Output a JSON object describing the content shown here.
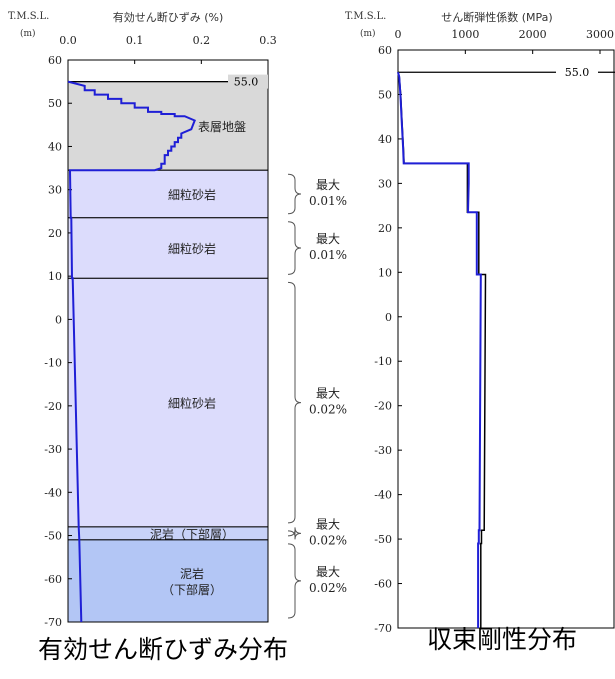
{
  "chart_data": [
    {
      "type": "line",
      "y_axis_label": "T.M.S.L.",
      "y_axis_unit": "(m)",
      "x_axis_label": "有効せん断ひずみ (%)",
      "x_ticks": [
        "0.0",
        "0.1",
        "0.2",
        "0.3"
      ],
      "xlim": [
        0.0,
        0.3
      ],
      "ylim": [
        -70,
        60
      ],
      "y_ticks": [
        60,
        50,
        40,
        30,
        20,
        10,
        0,
        -10,
        -20,
        -30,
        -40,
        -50,
        -60,
        -70
      ],
      "surface_marker": "55.0",
      "caption": "有効せん断ひずみ分布",
      "layers": [
        {
          "name": "表層地盤",
          "top": 55.0,
          "bottom": 34.5,
          "color": "#d9d9d9"
        },
        {
          "name": "細粒砂岩",
          "top": 34.5,
          "bottom": 23.5,
          "color": "#dcdcfc"
        },
        {
          "name": "細粒砂岩",
          "top": 23.5,
          "bottom": 9.5,
          "color": "#dcdcfc"
        },
        {
          "name": "細粒砂岩",
          "top": 9.5,
          "bottom": -48.0,
          "color": "#dcdcfc"
        },
        {
          "name": "泥岩（下部層）",
          "top": -48.0,
          "bottom": -51.0,
          "color": "#c8d2f8"
        },
        {
          "name": "泥岩\n（下部層）",
          "top": -51.0,
          "bottom": -70.0,
          "color": "#b3c6f5"
        }
      ],
      "max_annotations": [
        {
          "label": "最大",
          "value": "0.01%",
          "top": 34.5,
          "bottom": 23.5
        },
        {
          "label": "最大",
          "value": "0.01%",
          "top": 23.5,
          "bottom": 9.5
        },
        {
          "label": "最大",
          "value": "0.02%",
          "top": 9.5,
          "bottom": -48.0
        },
        {
          "label": "最大",
          "value": "0.02%",
          "top": -48.0,
          "bottom": -51.0
        },
        {
          "label": "最大",
          "value": "0.02%",
          "top": -51.0,
          "bottom": -70.0
        }
      ],
      "series": [
        {
          "color": "#1f1fd6",
          "points": [
            [
              0.0,
              55.0
            ],
            [
              0.025,
              54.0
            ],
            [
              0.025,
              53.0
            ],
            [
              0.04,
              53.0
            ],
            [
              0.04,
              52.0
            ],
            [
              0.06,
              52.0
            ],
            [
              0.06,
              51.0
            ],
            [
              0.08,
              51.0
            ],
            [
              0.08,
              50.0
            ],
            [
              0.1,
              50.0
            ],
            [
              0.1,
              49.0
            ],
            [
              0.12,
              49.0
            ],
            [
              0.12,
              48.0
            ],
            [
              0.14,
              48.0
            ],
            [
              0.14,
              47.5
            ],
            [
              0.16,
              47.5
            ],
            [
              0.16,
              47.0
            ],
            [
              0.175,
              47.0
            ],
            [
              0.19,
              46.0
            ],
            [
              0.185,
              44.0
            ],
            [
              0.17,
              43.0
            ],
            [
              0.17,
              42.0
            ],
            [
              0.165,
              42.0
            ],
            [
              0.165,
              41.0
            ],
            [
              0.16,
              41.0
            ],
            [
              0.16,
              40.0
            ],
            [
              0.155,
              40.0
            ],
            [
              0.155,
              39.0
            ],
            [
              0.15,
              39.0
            ],
            [
              0.15,
              38.0
            ],
            [
              0.145,
              38.0
            ],
            [
              0.145,
              36.0
            ],
            [
              0.14,
              36.0
            ],
            [
              0.14,
              35.0
            ],
            [
              0.13,
              34.5
            ],
            [
              0.003,
              34.5
            ],
            [
              0.004,
              23.5
            ],
            [
              0.005,
              23.5
            ],
            [
              0.006,
              9.5
            ],
            [
              0.007,
              9.5
            ],
            [
              0.016,
              -48.0
            ],
            [
              0.017,
              -51.0
            ],
            [
              0.02,
              -70.0
            ]
          ]
        }
      ]
    },
    {
      "type": "line",
      "y_axis_label": "T.M.S.L.",
      "y_axis_unit": "(m)",
      "x_axis_label": "せん断弾性係数 (MPa)",
      "x_ticks": [
        "0",
        "1000",
        "2000",
        "3000"
      ],
      "xlim": [
        0,
        3000
      ],
      "ylim": [
        -70,
        60
      ],
      "y_ticks": [
        60,
        50,
        40,
        30,
        20,
        10,
        0,
        -10,
        -20,
        -30,
        -40,
        -50,
        -60,
        -70
      ],
      "surface_marker": "55.0",
      "caption": "収束剛性分布",
      "series": [
        {
          "name": "black",
          "color": "#000000",
          "points": [
            [
              0,
              55.0
            ],
            [
              20,
              54.0
            ],
            [
              40,
              50.0
            ],
            [
              60,
              44.0
            ],
            [
              80,
              38.0
            ],
            [
              90,
              34.5
            ],
            [
              1030,
              34.5
            ],
            [
              1030,
              23.5
            ],
            [
              1200,
              23.5
            ],
            [
              1200,
              9.5
            ],
            [
              1300,
              9.5
            ],
            [
              1280,
              -48.0
            ],
            [
              1240,
              -48.0
            ],
            [
              1240,
              -51.0
            ],
            [
              1230,
              -51.0
            ],
            [
              1230,
              -70.0
            ]
          ]
        },
        {
          "name": "blue",
          "color": "#1f1fd6",
          "points": [
            [
              0,
              55.0
            ],
            [
              18,
              54.0
            ],
            [
              35,
              50.0
            ],
            [
              55,
              44.0
            ],
            [
              75,
              38.0
            ],
            [
              85,
              34.5
            ],
            [
              1050,
              34.5
            ],
            [
              1050,
              30.0
            ],
            [
              1040,
              23.5
            ],
            [
              1170,
              23.5
            ],
            [
              1170,
              9.5
            ],
            [
              1230,
              9.5
            ],
            [
              1210,
              -48.0
            ],
            [
              1200,
              -48.0
            ],
            [
              1200,
              -51.0
            ],
            [
              1190,
              -51.0
            ],
            [
              1190,
              -70.0
            ]
          ]
        }
      ]
    }
  ]
}
